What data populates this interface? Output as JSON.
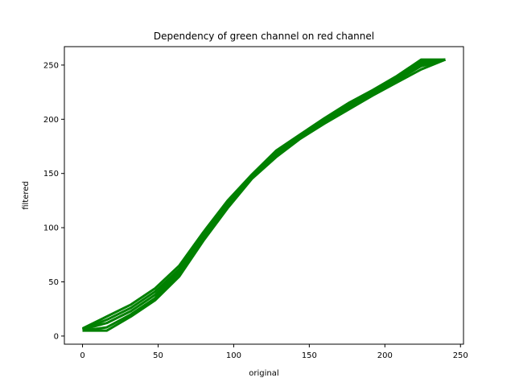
{
  "chart_data": {
    "type": "line",
    "title": "Dependency of green channel on red channel",
    "xlabel": "original",
    "ylabel": "filtered",
    "xlim": [
      -12,
      252
    ],
    "ylim": [
      -7.5,
      267
    ],
    "xticks": [
      0,
      50,
      100,
      150,
      200,
      250
    ],
    "yticks": [
      0,
      50,
      100,
      150,
      200,
      250
    ],
    "grid": false,
    "series_color": "#008000",
    "series": [
      {
        "x": [
          0,
          16,
          32,
          48,
          64,
          80,
          96,
          112,
          128,
          144,
          160,
          176,
          192,
          208,
          224,
          240
        ],
        "y": [
          5,
          5,
          18,
          33,
          55,
          88,
          118,
          145,
          165,
          182,
          196,
          209,
          222,
          234,
          246,
          255
        ]
      },
      {
        "x": [
          0,
          16,
          32,
          48,
          64,
          80,
          96,
          112,
          128,
          144,
          160,
          176,
          192,
          208,
          224,
          240
        ],
        "y": [
          5,
          8,
          20,
          35,
          58,
          90,
          120,
          146,
          167,
          183,
          197,
          211,
          224,
          236,
          249,
          255
        ]
      },
      {
        "x": [
          0,
          16,
          32,
          48,
          64,
          80,
          96,
          112,
          128,
          144,
          160,
          176,
          192,
          208,
          224,
          240
        ],
        "y": [
          6,
          12,
          23,
          38,
          60,
          92,
          121,
          147,
          168,
          184,
          198,
          212,
          225,
          237,
          251,
          255
        ]
      },
      {
        "x": [
          0,
          16,
          32,
          48,
          64,
          80,
          96,
          112,
          128,
          144,
          160,
          176,
          192,
          208,
          224,
          240
        ],
        "y": [
          6,
          15,
          26,
          41,
          62,
          94,
          123,
          148,
          169,
          185,
          200,
          213,
          226,
          238,
          253,
          255
        ]
      },
      {
        "x": [
          0,
          16,
          32,
          48,
          64,
          80,
          96,
          112,
          128,
          144,
          160,
          176,
          192,
          208,
          224,
          240
        ],
        "y": [
          7,
          18,
          29,
          44,
          65,
          96,
          125,
          149,
          171,
          186,
          201,
          215,
          227,
          240,
          255,
          255
        ]
      }
    ]
  }
}
